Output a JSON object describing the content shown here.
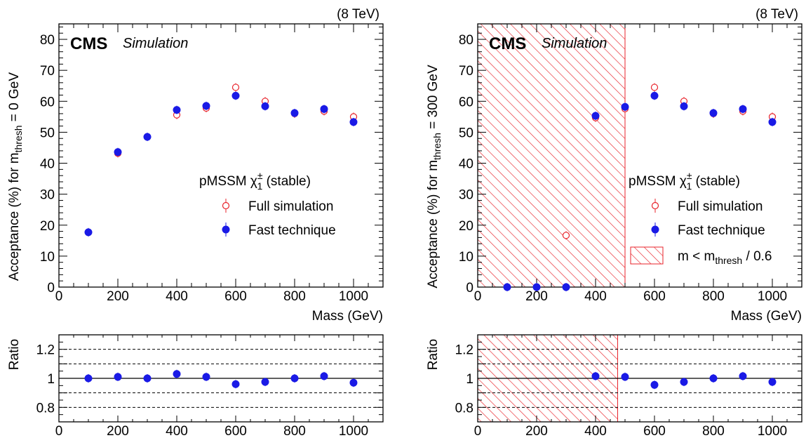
{
  "colors": {
    "full": "#e8232b",
    "fast": "#1a1ae6",
    "hatch": "#e8232b"
  },
  "chart_data": [
    {
      "type": "scatter",
      "energy_label": "(8 TeV)",
      "cms_label": "CMS",
      "sim_label": "Simulation",
      "xlabel": "Mass (GeV)",
      "ylabel": "Acceptance (%) for m",
      "ylabel_sub": "thresh",
      "ylabel_tail": " = 0 GeV",
      "xlim": [
        0,
        1100
      ],
      "ylim": [
        0,
        85
      ],
      "xticks": [
        "0",
        "200",
        "400",
        "600",
        "800",
        "1000"
      ],
      "yticks": [
        "0",
        "10",
        "20",
        "30",
        "40",
        "50",
        "60",
        "70",
        "80"
      ],
      "legend_title": "pMSSM χ",
      "legend_title_sup": "±",
      "legend_title_sub": "1",
      "legend_title_tail": " (stable)",
      "series": [
        {
          "name": "Full simulation",
          "marker": "open-circle",
          "x": [
            100,
            200,
            300,
            400,
            500,
            600,
            700,
            800,
            900,
            1000
          ],
          "y": [
            17.7,
            43.2,
            48.5,
            55.6,
            57.8,
            64.5,
            60.0,
            56.0,
            56.8,
            55.0
          ]
        },
        {
          "name": "Fast technique",
          "marker": "filled-circle",
          "x": [
            100,
            200,
            300,
            400,
            500,
            600,
            700,
            800,
            900,
            1000
          ],
          "y": [
            17.7,
            43.6,
            48.5,
            57.2,
            58.5,
            61.8,
            58.4,
            56.2,
            57.5,
            53.3
          ]
        }
      ],
      "hatch_xmax": null
    },
    {
      "type": "scatter",
      "energy_label": "(8 TeV)",
      "cms_label": "CMS",
      "sim_label": "Simulation",
      "xlabel": "Mass (GeV)",
      "ylabel": "Acceptance (%) for m",
      "ylabel_sub": "thresh",
      "ylabel_tail": " = 300 GeV",
      "xlim": [
        0,
        1100
      ],
      "ylim": [
        0,
        85
      ],
      "xticks": [
        "0",
        "200",
        "400",
        "600",
        "800",
        "1000"
      ],
      "yticks": [
        "0",
        "10",
        "20",
        "30",
        "40",
        "50",
        "60",
        "70",
        "80"
      ],
      "legend_title": "pMSSM χ",
      "legend_title_sup": "±",
      "legend_title_sub": "1",
      "legend_title_tail": " (stable)",
      "hatch_legend": "m < m",
      "hatch_legend_sub": "thresh",
      "hatch_legend_tail": " / 0.6",
      "hatch_xmax": 500,
      "series": [
        {
          "name": "Full simulation",
          "marker": "open-circle",
          "x": [
            100,
            200,
            300,
            400,
            500,
            600,
            700,
            800,
            900,
            1000
          ],
          "y": [
            0,
            0,
            16.7,
            54.7,
            57.6,
            64.5,
            60.0,
            56.0,
            56.8,
            55.0
          ]
        },
        {
          "name": "Fast technique",
          "marker": "filled-circle",
          "x": [
            100,
            200,
            300,
            400,
            500,
            600,
            700,
            800,
            900,
            1000
          ],
          "y": [
            0,
            0,
            0,
            55.3,
            58.2,
            61.8,
            58.4,
            56.2,
            57.5,
            53.3
          ]
        }
      ]
    },
    {
      "type": "scatter",
      "ylabel": "Ratio",
      "xlim": [
        0,
        1100
      ],
      "ylim": [
        0.7,
        1.3
      ],
      "xticks": [
        "0",
        "200",
        "400",
        "600",
        "800",
        "1000"
      ],
      "yticks": [
        "0.8",
        "1",
        "1.2"
      ],
      "dashed_lines": [
        0.8,
        0.9,
        1.1,
        1.2
      ],
      "solid_line": 1.0,
      "hatch_xmax": null,
      "series": [
        {
          "name": "",
          "marker": "filled-circle",
          "x": [
            100,
            200,
            300,
            400,
            500,
            600,
            700,
            800,
            900,
            1000
          ],
          "y": [
            1.0,
            1.01,
            1.0,
            1.03,
            1.01,
            0.96,
            0.975,
            1.0,
            1.015,
            0.97
          ]
        }
      ]
    },
    {
      "type": "scatter",
      "ylabel": "Ratio",
      "xlim": [
        0,
        1100
      ],
      "ylim": [
        0.7,
        1.3
      ],
      "xticks": [
        "0",
        "200",
        "400",
        "600",
        "800",
        "1000"
      ],
      "yticks": [
        "0.8",
        "1",
        "1.2"
      ],
      "dashed_lines": [
        0.8,
        0.9,
        1.1,
        1.2
      ],
      "solid_line": 1.0,
      "hatch_xmax": 475,
      "series": [
        {
          "name": "",
          "marker": "filled-circle",
          "x": [
            400,
            500,
            600,
            700,
            800,
            900,
            1000
          ],
          "y": [
            1.015,
            1.01,
            0.955,
            0.975,
            1.0,
            1.015,
            0.975
          ]
        }
      ]
    }
  ]
}
